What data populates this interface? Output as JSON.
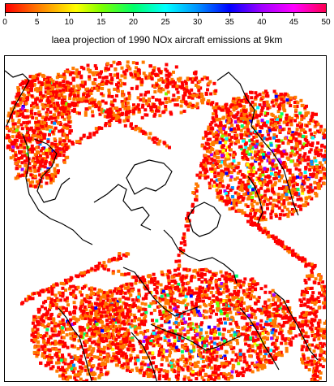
{
  "title": "laea projection of 1990 NOx aircraft emissions at 9km",
  "colorbar": {
    "min": 0,
    "max": 50,
    "ticks": [
      "0",
      "5",
      "10",
      "15",
      "20",
      "25",
      "30",
      "35",
      "40",
      "45",
      "50"
    ],
    "colors": [
      "#ff0000",
      "#ff7a00",
      "#ffff00",
      "#7cff00",
      "#00ff6a",
      "#00ffff",
      "#0090ff",
      "#0000ff",
      "#a000ff",
      "#ff00ff",
      "#ff0050"
    ]
  },
  "map": {
    "projection": "laea",
    "pole": "north",
    "coastline_color": "#000000",
    "background": "#ffffff"
  }
}
